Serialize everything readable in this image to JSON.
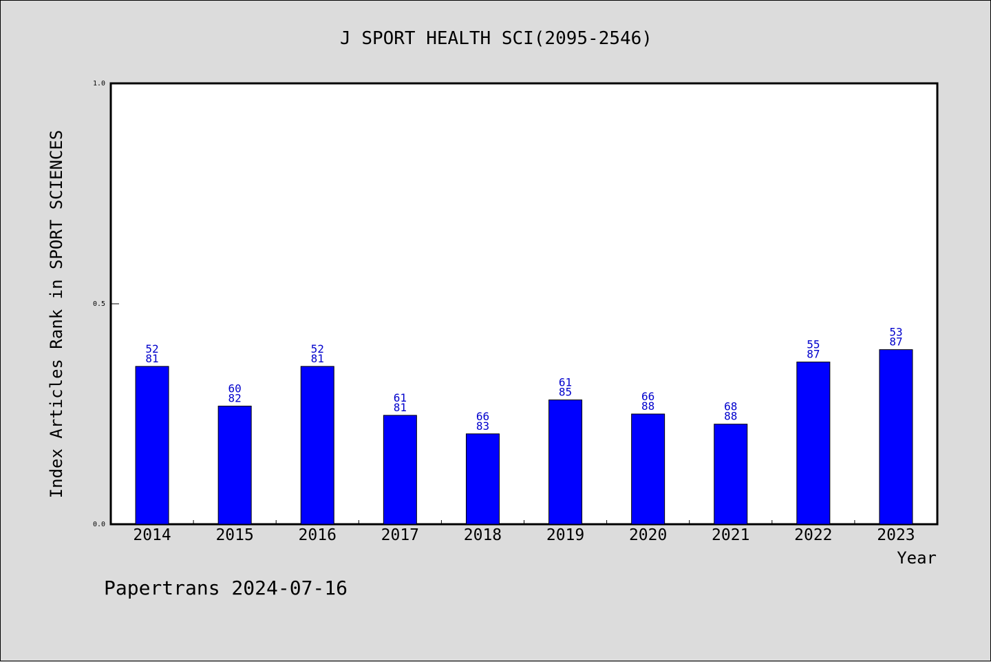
{
  "chart_data": {
    "type": "bar",
    "title": "J SPORT HEALTH SCI(2095-2546)",
    "xlabel": "Year",
    "ylabel": "Index Articles Rank in SPORT SCIENCES",
    "ylim": [
      0,
      1
    ],
    "yticks": [
      "0.0",
      "0.5",
      "1.0"
    ],
    "ytick_values": [
      0,
      0.5,
      1.0
    ],
    "categories": [
      "2014",
      "2015",
      "2016",
      "2017",
      "2018",
      "2019",
      "2020",
      "2021",
      "2022",
      "2023"
    ],
    "values": [
      0.358,
      0.268,
      0.358,
      0.247,
      0.205,
      0.282,
      0.25,
      0.227,
      0.368,
      0.396
    ],
    "labels_top": [
      "52",
      "60",
      "52",
      "61",
      "66",
      "61",
      "66",
      "68",
      "55",
      "53"
    ],
    "labels_bottom": [
      "81",
      "82",
      "81",
      "81",
      "83",
      "85",
      "88",
      "88",
      "87",
      "87"
    ],
    "bar_color": "#0000ff",
    "label_color": "#0000cc",
    "grid": false
  },
  "footer": "Papertrans 2024-07-16"
}
